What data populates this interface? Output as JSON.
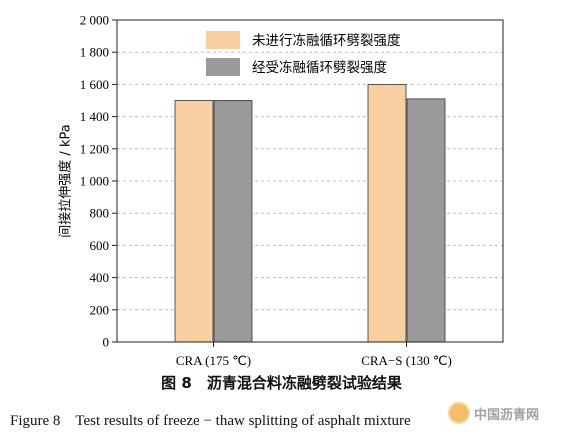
{
  "chart_data": {
    "type": "bar",
    "categories": [
      "CRA (175 ℃)",
      "CRA−S (130 ℃)"
    ],
    "series": [
      {
        "name": "未进行冻融循环劈裂强度",
        "values": [
          1500,
          1600
        ],
        "color": "#f7cfa0"
      },
      {
        "name": "经受冻融循环劈裂强度",
        "values": [
          1500,
          1510
        ],
        "color": "#9a9a9a"
      }
    ],
    "ylabel": "间接拉伸强度 / kPa",
    "ylim": [
      0,
      2000
    ],
    "yticks": [
      "0",
      "200",
      "400",
      "600",
      "800",
      "1 000",
      "1 200",
      "1 400",
      "1 600",
      "1 800",
      "2 000"
    ],
    "grid": true,
    "legend_position": "top-center"
  },
  "caption": {
    "cn": "图 8　沥青混合料冻融劈裂试验结果",
    "en": "Figure 8　Test results of freeze − thaw splitting of asphalt mixture"
  },
  "watermark": {
    "text": "中国沥青网"
  }
}
